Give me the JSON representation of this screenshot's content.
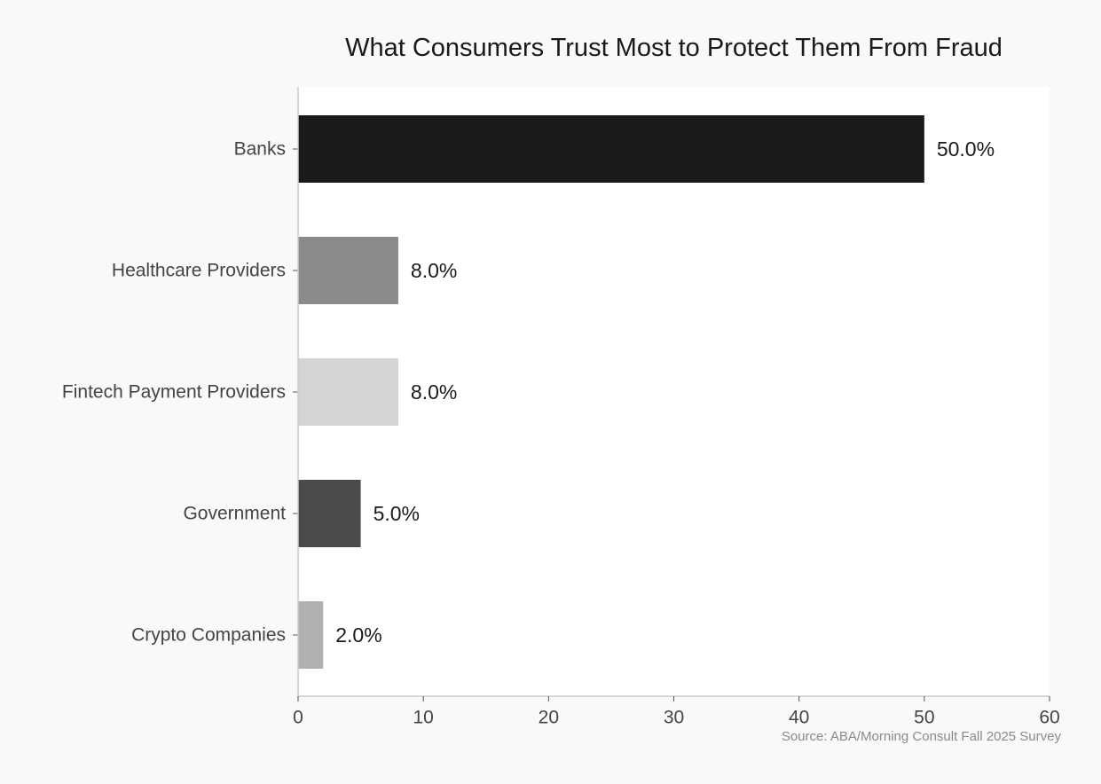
{
  "chart_data": {
    "type": "bar",
    "orientation": "horizontal",
    "title": "What Consumers Trust Most to Protect Them From Fraud",
    "xlabel": "",
    "ylabel": "",
    "categories": [
      "Banks",
      "Healthcare Providers",
      "Fintech Payment Providers",
      "Government",
      "Crypto Companies"
    ],
    "values": [
      50.0,
      8.0,
      8.0,
      5.0,
      2.0
    ],
    "value_labels": [
      "50.0%",
      "8.0%",
      "8.0%",
      "5.0%",
      "2.0%"
    ],
    "bar_colors": [
      "#1a1a1a",
      "#8a8a8a",
      "#d4d4d4",
      "#4a4a4a",
      "#b0b0b0"
    ],
    "xlim": [
      0,
      60
    ],
    "xticks": [
      0,
      10,
      20,
      30,
      40,
      50,
      60
    ],
    "grid": false,
    "legend": "none"
  },
  "source": "Source: ABA/Morning Consult Fall 2025 Survey",
  "colors": {
    "plot_background": "#ffffff",
    "page_background": "#f9f9f9",
    "axis": "#cccccc",
    "category_text": "#444444",
    "value_text": "#1a1a1a",
    "tick_text": "#444444"
  }
}
